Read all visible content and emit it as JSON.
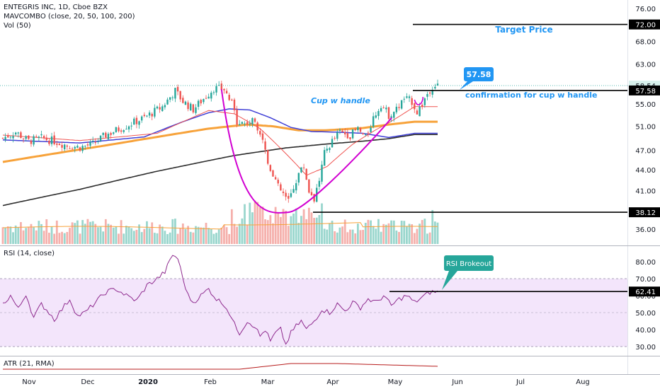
{
  "header": {
    "symbol_line": "ENTEGRIS INC, 1D, Cboe BZX",
    "ma_line": "MAVCOMBO (close, 20, 50, 100, 200)",
    "vol_line": "Vol (50)"
  },
  "rsi_pane": {
    "label": "RSI (14, close)"
  },
  "atr_pane": {
    "label": "ATR (21, RMA)"
  },
  "colors": {
    "up": "#26a69a",
    "down": "#ef5350",
    "ma20": "#ef5350",
    "ma50": "#3f3fd6",
    "ma100": "#f7a23a",
    "ma200": "#2b2b2b",
    "cup": "#d100d1",
    "annot": "#2196f3",
    "rsi": "#8e2a8e",
    "rsi_band": "#f3e5fb"
  },
  "chart_data": [
    {
      "type": "candlestick",
      "title": "ENTEGRIS INC, 1D, Cboe BZX",
      "scale": "log",
      "x_ticks": [
        "Nov",
        "Dec",
        "2020",
        "Feb",
        "Mar",
        "Apr",
        "May",
        "Jun",
        "Jul",
        "Aug"
      ],
      "y_ticks": [
        36.0,
        41.0,
        44.0,
        47.0,
        51.0,
        55.0,
        58.54,
        63.0,
        68.0,
        72.0,
        76.0
      ],
      "y_tick_labels": [
        "36.00",
        "41.00",
        "44.00",
        "47.00",
        "51.00",
        "55.00",
        "58.54",
        "63.00",
        "68.00",
        "72.00",
        "76.00"
      ],
      "ylim": [
        34.5,
        78.0
      ],
      "last_price": 58.54,
      "current_price_label": "58.54",
      "price_levels": [
        {
          "value": 72.0,
          "label": "72.00"
        },
        {
          "value": 57.58,
          "label": "57.58"
        },
        {
          "value": 38.12,
          "label": "38.12"
        }
      ],
      "annotations": {
        "target": "Target Price",
        "cup": "Cup w handle",
        "confirmation": "confirmation for cup w handle",
        "callout": "57.58"
      },
      "moving_averages": [
        {
          "period": 20,
          "color": "#ef5350"
        },
        {
          "period": 50,
          "color": "#3f3fd6"
        },
        {
          "period": 100,
          "color": "#f7a23a"
        },
        {
          "period": 200,
          "color": "#2b2b2b"
        }
      ],
      "ma_anchors": {
        "ma20": [
          [
            0,
            49.5
          ],
          [
            30,
            48.6
          ],
          [
            60,
            49.8
          ],
          [
            80,
            53.8
          ],
          [
            90,
            53.2
          ],
          [
            100,
            50.6
          ],
          [
            110,
            46.5
          ],
          [
            118,
            43.2
          ],
          [
            126,
            44.5
          ],
          [
            136,
            48.0
          ],
          [
            145,
            50.4
          ],
          [
            150,
            51.6
          ],
          [
            155,
            53.0
          ],
          [
            160,
            54.5
          ]
        ],
        "ma50": [
          [
            0,
            48.7
          ],
          [
            30,
            48.2
          ],
          [
            55,
            49.2
          ],
          [
            70,
            51.8
          ],
          [
            80,
            53.4
          ],
          [
            88,
            54.1
          ],
          [
            96,
            53.9
          ],
          [
            104,
            52.5
          ],
          [
            112,
            50.8
          ],
          [
            120,
            50.1
          ],
          [
            130,
            50.0
          ],
          [
            140,
            49.8
          ],
          [
            150,
            49.1
          ],
          [
            160,
            49.8
          ]
        ],
        "ma100": [
          [
            0,
            45.2
          ],
          [
            20,
            46.5
          ],
          [
            40,
            47.8
          ],
          [
            60,
            49.2
          ],
          [
            80,
            50.6
          ],
          [
            95,
            51.3
          ],
          [
            105,
            51.0
          ],
          [
            115,
            50.3
          ],
          [
            125,
            50.3
          ],
          [
            140,
            50.7
          ],
          [
            150,
            51.3
          ],
          [
            160,
            51.8
          ]
        ],
        "ma200": [
          [
            0,
            39.0
          ],
          [
            30,
            41.2
          ],
          [
            60,
            43.8
          ],
          [
            90,
            46.2
          ],
          [
            110,
            47.4
          ],
          [
            125,
            48.0
          ],
          [
            140,
            48.5
          ],
          [
            150,
            48.9
          ],
          [
            160,
            49.6
          ]
        ]
      },
      "close_anchors": [
        [
          0,
          49.0
        ],
        [
          5,
          50.0
        ],
        [
          10,
          48.5
        ],
        [
          15,
          49.0
        ],
        [
          20,
          48.5
        ],
        [
          25,
          47.8
        ],
        [
          30,
          47.5
        ],
        [
          35,
          48.0
        ],
        [
          40,
          49.5
        ],
        [
          45,
          50.5
        ],
        [
          50,
          51.5
        ],
        [
          55,
          52.5
        ],
        [
          62,
          54.5
        ],
        [
          67,
          57.5
        ],
        [
          70,
          55.5
        ],
        [
          74,
          54.0
        ],
        [
          78,
          56.0
        ],
        [
          82,
          58.0
        ],
        [
          86,
          57.8
        ],
        [
          89,
          55.0
        ],
        [
          91,
          52.0
        ],
        [
          94,
          51.5
        ],
        [
          98,
          52.0
        ],
        [
          101,
          49.0
        ],
        [
          103,
          45.0
        ],
        [
          105,
          43.5
        ],
        [
          107,
          41.5
        ],
        [
          109,
          40.5
        ],
        [
          111,
          39.5
        ],
        [
          113,
          41.5
        ],
        [
          115,
          43.5
        ],
        [
          117,
          44.5
        ],
        [
          119,
          41.0
        ],
        [
          121,
          40.0
        ],
        [
          123,
          42.5
        ],
        [
          125,
          46.5
        ],
        [
          128,
          48.5
        ],
        [
          131,
          50.0
        ],
        [
          135,
          49.5
        ],
        [
          138,
          50.5
        ],
        [
          141,
          49.0
        ],
        [
          144,
          52.5
        ],
        [
          147,
          55.0
        ],
        [
          150,
          53.0
        ],
        [
          153,
          54.0
        ],
        [
          156,
          56.0
        ],
        [
          159,
          55.5
        ],
        [
          161,
          53.5
        ],
        [
          163,
          55.0
        ],
        [
          165,
          57.0
        ],
        [
          167,
          58.5
        ],
        [
          169,
          58.54
        ]
      ],
      "volume": {
        "label": "Vol (50)",
        "ma_color": "#f7a23a"
      },
      "cup_pattern": {
        "left": [
          85,
          57.8
        ],
        "bottom": [
          111,
          38.12
        ],
        "right": [
          150,
          51.5
        ]
      }
    },
    {
      "type": "line",
      "title": "RSI (14, close)",
      "y_ticks": [
        30,
        40,
        50,
        60,
        70,
        80
      ],
      "y_tick_labels": [
        "30.00",
        "40.00",
        "50.00",
        "60.00",
        "70.00",
        "80.00"
      ],
      "ylim": [
        25,
        87
      ],
      "band": [
        30,
        70
      ],
      "current_label": "62.41",
      "current_value": 62.41,
      "breakout_level": 62.41,
      "annotation": "RSI Brokeout",
      "anchors": [
        [
          0,
          55
        ],
        [
          3,
          60
        ],
        [
          6,
          52
        ],
        [
          9,
          61
        ],
        [
          12,
          47
        ],
        [
          15,
          55
        ],
        [
          18,
          50
        ],
        [
          20,
          46
        ],
        [
          23,
          52
        ],
        [
          26,
          58
        ],
        [
          29,
          48
        ],
        [
          32,
          50
        ],
        [
          36,
          56
        ],
        [
          40,
          62
        ],
        [
          44,
          64
        ],
        [
          48,
          60
        ],
        [
          52,
          57
        ],
        [
          56,
          66
        ],
        [
          60,
          70
        ],
        [
          63,
          74
        ],
        [
          66,
          84
        ],
        [
          68,
          82
        ],
        [
          70,
          70
        ],
        [
          72,
          60
        ],
        [
          74,
          56
        ],
        [
          77,
          60
        ],
        [
          80,
          64
        ],
        [
          83,
          58
        ],
        [
          86,
          55
        ],
        [
          88,
          50
        ],
        [
          90,
          43
        ],
        [
          92,
          38
        ],
        [
          95,
          45
        ],
        [
          98,
          42
        ],
        [
          100,
          36
        ],
        [
          102,
          40
        ],
        [
          104,
          33
        ],
        [
          106,
          38
        ],
        [
          108,
          40
        ],
        [
          110,
          31
        ],
        [
          112,
          38
        ],
        [
          114,
          42
        ],
        [
          116,
          45
        ],
        [
          118,
          40
        ],
        [
          121,
          45
        ],
        [
          124,
          52
        ],
        [
          127,
          50
        ],
        [
          130,
          55
        ],
        [
          133,
          51
        ],
        [
          136,
          56
        ],
        [
          139,
          53
        ],
        [
          142,
          58
        ],
        [
          145,
          56
        ],
        [
          148,
          60
        ],
        [
          151,
          54
        ],
        [
          154,
          58
        ],
        [
          157,
          60
        ],
        [
          160,
          56
        ],
        [
          163,
          59
        ],
        [
          166,
          62
        ],
        [
          169,
          62.41
        ]
      ]
    },
    {
      "type": "line",
      "title": "ATR (21, RMA)"
    }
  ]
}
